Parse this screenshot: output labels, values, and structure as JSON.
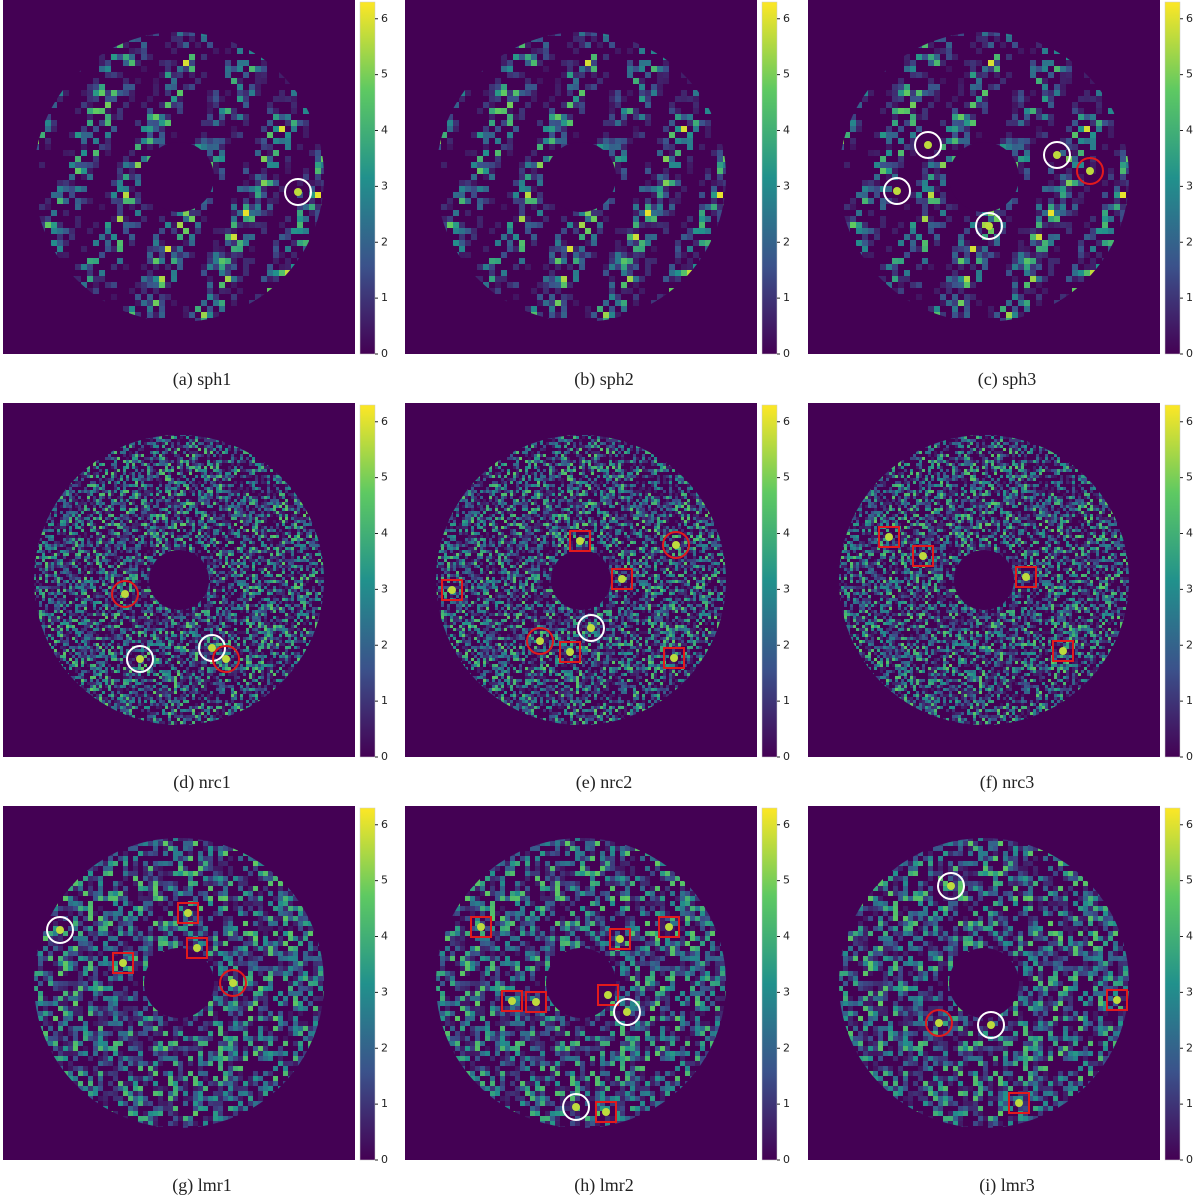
{
  "chart_data": [
    {
      "type": "heatmap",
      "title": "(a) sph1",
      "ylim": [
        0,
        6.3
      ],
      "yticks": [
        0,
        1,
        2,
        3,
        4,
        5,
        6
      ],
      "colors": [
        "#440154",
        "#3b528b",
        "#21918c",
        "#5ec962",
        "#fde725"
      ]
    },
    {
      "type": "heatmap",
      "title": "(b) sph2",
      "ylim": [
        0,
        6.3
      ],
      "yticks": [
        0,
        1,
        2,
        3,
        4,
        5,
        6
      ],
      "colors": [
        "#440154",
        "#3b528b",
        "#21918c",
        "#5ec962",
        "#fde725"
      ]
    },
    {
      "type": "heatmap",
      "title": "(c) sph3",
      "ylim": [
        0,
        6.3
      ],
      "yticks": [
        0,
        1,
        2,
        3,
        4,
        5,
        6
      ],
      "colors": [
        "#440154",
        "#3b528b",
        "#21918c",
        "#5ec962",
        "#fde725"
      ]
    },
    {
      "type": "heatmap",
      "title": "(d) nrc1",
      "ylim": [
        0,
        6.3
      ],
      "yticks": [
        0,
        1,
        2,
        3,
        4,
        5,
        6
      ],
      "colors": [
        "#440154",
        "#3b528b",
        "#21918c",
        "#5ec962",
        "#fde725"
      ]
    },
    {
      "type": "heatmap",
      "title": "(e) nrc2",
      "ylim": [
        0,
        6.3
      ],
      "yticks": [
        0,
        1,
        2,
        3,
        4,
        5,
        6
      ],
      "colors": [
        "#440154",
        "#3b528b",
        "#21918c",
        "#5ec962",
        "#fde725"
      ]
    },
    {
      "type": "heatmap",
      "title": "(f) nrc3",
      "ylim": [
        0,
        6.3
      ],
      "yticks": [
        0,
        1,
        2,
        3,
        4,
        5,
        6
      ],
      "colors": [
        "#440154",
        "#3b528b",
        "#21918c",
        "#5ec962",
        "#fde725"
      ]
    },
    {
      "type": "heatmap",
      "title": "(g) lmr1",
      "ylim": [
        0,
        6.3
      ],
      "yticks": [
        0,
        1,
        2,
        3,
        4,
        5,
        6
      ],
      "colors": [
        "#440154",
        "#3b528b",
        "#21918c",
        "#5ec962",
        "#fde725"
      ]
    },
    {
      "type": "heatmap",
      "title": "(h) lmr2",
      "ylim": [
        0,
        6.3
      ],
      "yticks": [
        0,
        1,
        2,
        3,
        4,
        5,
        6
      ],
      "colors": [
        "#440154",
        "#3b528b",
        "#21918c",
        "#5ec962",
        "#fde725"
      ]
    },
    {
      "type": "heatmap",
      "title": "(i) lmr3",
      "ylim": [
        0,
        6.3
      ],
      "yticks": [
        0,
        1,
        2,
        3,
        4,
        5,
        6
      ],
      "colors": [
        "#440154",
        "#3b528b",
        "#21918c",
        "#5ec962",
        "#fde725"
      ]
    }
  ]
}
